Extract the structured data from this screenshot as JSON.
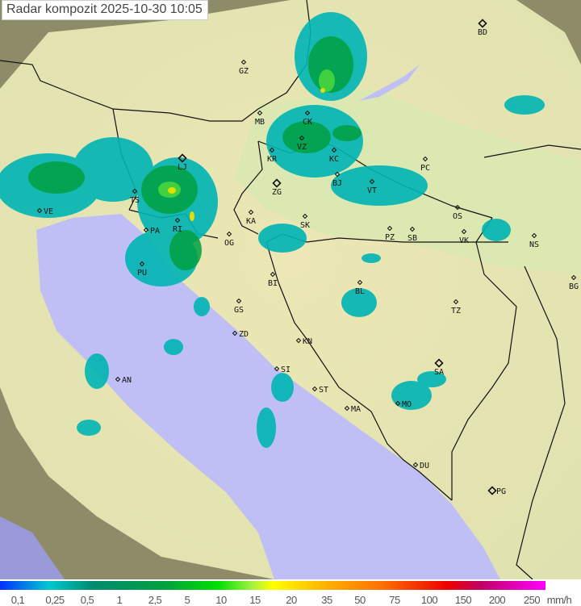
{
  "title": "Radar kompozit  2025-10-30   10:05",
  "legend": {
    "unit": "mm/h",
    "ticks": [
      "0,1",
      "0,25",
      "0,5",
      "1",
      "2,5",
      "5",
      "10",
      "15",
      "20",
      "35",
      "50",
      "75",
      "100",
      "150",
      "200",
      "250"
    ]
  },
  "colors": {
    "sea": "#bfbff5",
    "land": "#e6e8b0",
    "outside": "#8c8c66",
    "radar_light": "#00b4b4",
    "radar_mid": "#00a040",
    "radar_high": "#ffff00"
  },
  "cities": [
    {
      "code": "BD",
      "major": true
    },
    {
      "code": "GZ"
    },
    {
      "code": "MB"
    },
    {
      "code": "CK"
    },
    {
      "code": "VZ"
    },
    {
      "code": "KR"
    },
    {
      "code": "KC"
    },
    {
      "code": "BJ"
    },
    {
      "code": "PC"
    },
    {
      "code": "VT"
    },
    {
      "code": "ZG",
      "major": true
    },
    {
      "code": "LJ",
      "major": true
    },
    {
      "code": "TS"
    },
    {
      "code": "VE"
    },
    {
      "code": "RI"
    },
    {
      "code": "KA"
    },
    {
      "code": "SK"
    },
    {
      "code": "OS"
    },
    {
      "code": "PZ"
    },
    {
      "code": "SB"
    },
    {
      "code": "VK"
    },
    {
      "code": "NS"
    },
    {
      "code": "PA"
    },
    {
      "code": "OG"
    },
    {
      "code": "PU"
    },
    {
      "code": "BI"
    },
    {
      "code": "BL"
    },
    {
      "code": "BG"
    },
    {
      "code": "TZ"
    },
    {
      "code": "GS"
    },
    {
      "code": "ZD"
    },
    {
      "code": "KN"
    },
    {
      "code": "SA",
      "major": true
    },
    {
      "code": "SI"
    },
    {
      "code": "ST"
    },
    {
      "code": "AN"
    },
    {
      "code": "MA"
    },
    {
      "code": "MO"
    },
    {
      "code": "DU"
    },
    {
      "code": "PG",
      "major": true
    }
  ]
}
